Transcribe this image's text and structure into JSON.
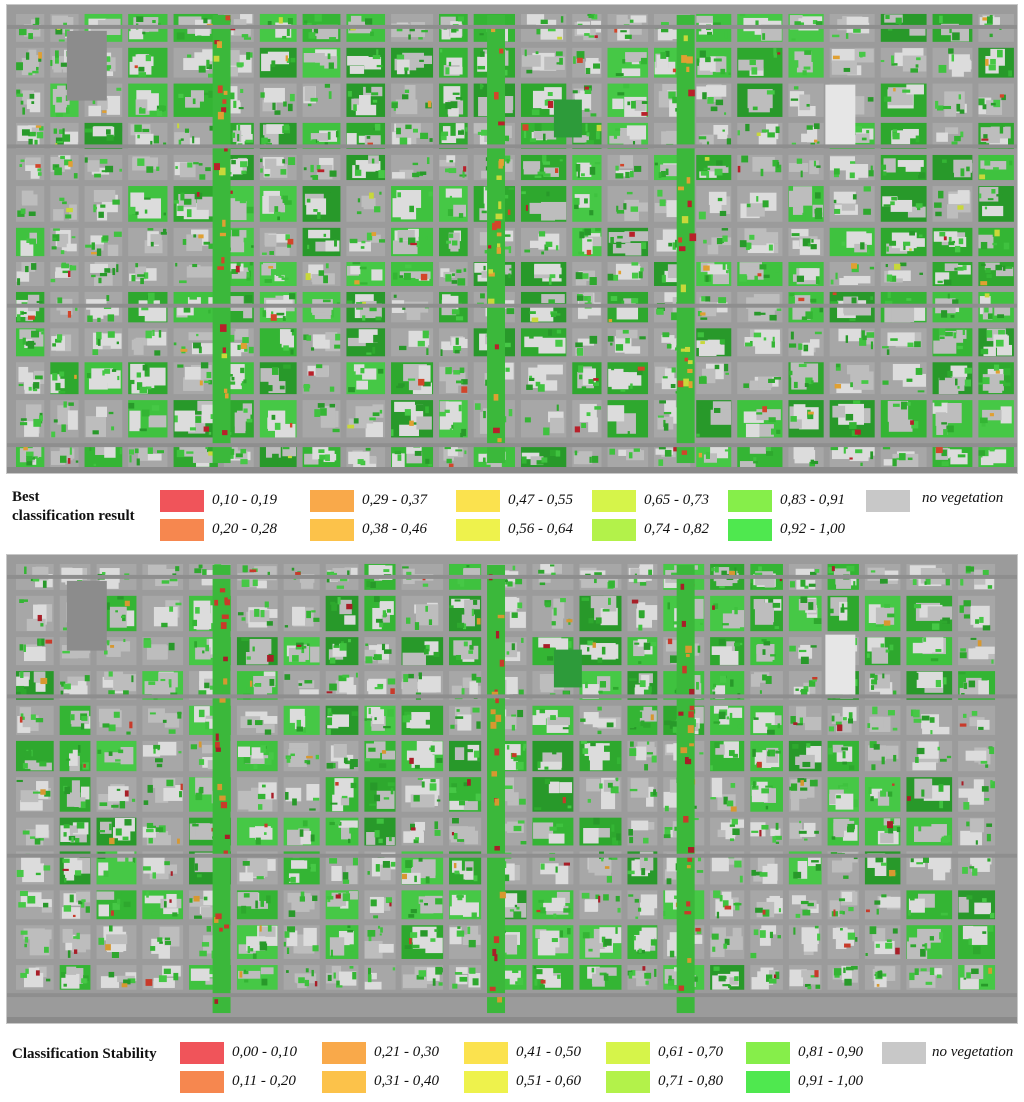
{
  "maps": [
    {
      "id": "best",
      "legend_title_lines": [
        "Best",
        "classification result"
      ],
      "items": [
        {
          "label": "0,10 - 0,19",
          "color": "#f0545a"
        },
        {
          "label": "0,20 - 0,28",
          "color": "#f6874f"
        },
        {
          "label": "0,29 - 0,37",
          "color": "#f9a94a"
        },
        {
          "label": "0,38 - 0,46",
          "color": "#fcc24a"
        },
        {
          "label": "0,47 - 0,55",
          "color": "#fbe24e"
        },
        {
          "label": "0,56 - 0,64",
          "color": "#eef24c"
        },
        {
          "label": "0,65 - 0,73",
          "color": "#d6f44a"
        },
        {
          "label": "0,74 - 0,82",
          "color": "#b3f24a"
        },
        {
          "label": "0,83 - 0,91",
          "color": "#86ee4a"
        },
        {
          "label": "0,92 - 1,00",
          "color": "#4fe84f"
        },
        {
          "label": "no vegetation",
          "color": "#c8c8c8"
        }
      ]
    },
    {
      "id": "stability",
      "legend_title_lines": [
        "Classification Stability"
      ],
      "items": [
        {
          "label": "0,00 - 0,10",
          "color": "#f0545a"
        },
        {
          "label": "0,11 - 0,20",
          "color": "#f6874f"
        },
        {
          "label": "0,21 - 0,30",
          "color": "#f9a94a"
        },
        {
          "label": "0,31 - 0,40",
          "color": "#fcc24a"
        },
        {
          "label": "0,41 - 0,50",
          "color": "#fbe24e"
        },
        {
          "label": "0,51 - 0,60",
          "color": "#eef24c"
        },
        {
          "label": "0,61 - 0,70",
          "color": "#d6f44a"
        },
        {
          "label": "0,71 - 0,80",
          "color": "#b3f24a"
        },
        {
          "label": "0,81 - 0,90",
          "color": "#86ee4a"
        },
        {
          "label": "0,91 - 1,00",
          "color": "#4fe84f"
        },
        {
          "label": "no vegetation",
          "color": "#c8c8c8"
        }
      ]
    }
  ]
}
